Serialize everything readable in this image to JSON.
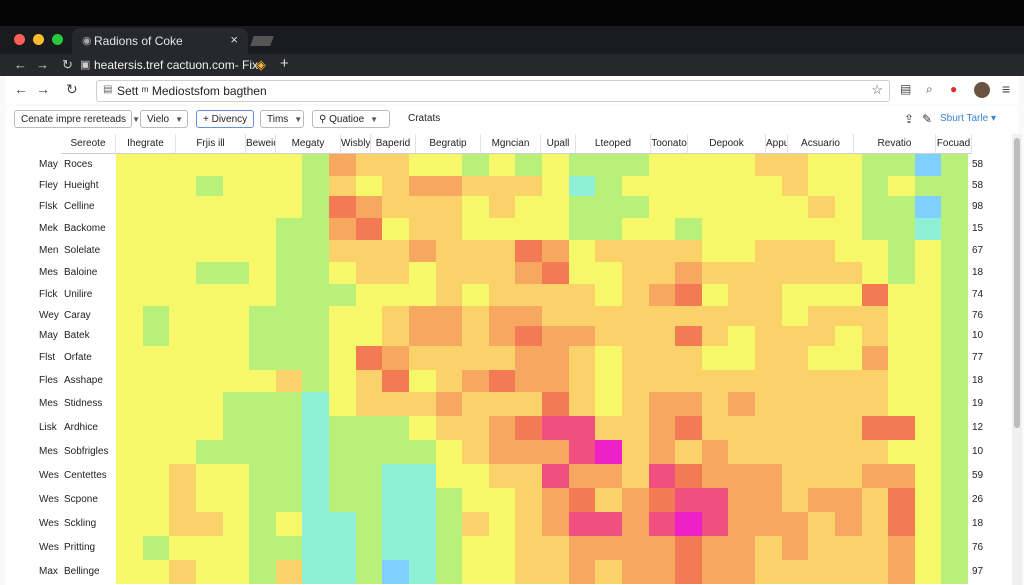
{
  "browser": {
    "tab_title": "Radions of Coke",
    "tab_close": "×",
    "address_url": "heatersis.tref cactuon.com- Fix",
    "new_tab": "+",
    "omnibox_text": "Sett ᵐ Mediostsfom bagthen"
  },
  "toolbar": {
    "dropdown1": "Cenate impre rereteads",
    "dropdown2": "Vielo",
    "button_active": "+ Divency",
    "dropdown3": "Tims",
    "dropdown4": "Quatioe",
    "label": "Cratats",
    "share": "Sburt Tarle"
  },
  "columns": [
    "Sereote",
    "Ihegrate",
    "Frjis ill",
    "Beweict",
    "Megaty",
    "Wisbly",
    "Baperid",
    "Begratip",
    "Mgncian",
    "Upall",
    "Lteoped",
    "Toonato",
    "Depook",
    "Appul",
    "Acsuario",
    "Revatio",
    "Focuad"
  ],
  "rows": [
    {
      "prefix": "May",
      "name": "Roces",
      "value": "58"
    },
    {
      "prefix": "Fley",
      "name": "Hueight",
      "value": "58"
    },
    {
      "prefix": "Flsk",
      "name": "Celline",
      "value": "98"
    },
    {
      "prefix": "Mek",
      "name": "Backome",
      "value": "15"
    },
    {
      "prefix": "Men",
      "name": "Solelate",
      "value": "67"
    },
    {
      "prefix": "Mes",
      "name": "Baloine",
      "value": "18"
    },
    {
      "prefix": "Flck",
      "name": "Unilire",
      "value": "74"
    },
    {
      "prefix": "Wey",
      "name": "Caray",
      "value": "76"
    },
    {
      "prefix": "May",
      "name": "Batek",
      "value": "10"
    },
    {
      "prefix": "Flst",
      "name": "Orfate",
      "value": "77"
    },
    {
      "prefix": "Fles",
      "name": "Asshape",
      "value": "18"
    },
    {
      "prefix": "Mes",
      "name": "Stidness",
      "value": "19"
    },
    {
      "prefix": "Lisk",
      "name": "Ardhice",
      "value": "12"
    },
    {
      "prefix": "Mes",
      "name": "Sobfrigles",
      "value": "10"
    },
    {
      "prefix": "Wes",
      "name": "Centettes",
      "value": "59"
    },
    {
      "prefix": "Wes",
      "name": "Scpone",
      "value": "26"
    },
    {
      "prefix": "Wes",
      "name": "Sckling",
      "value": "18"
    },
    {
      "prefix": "Wes",
      "name": "Pritting",
      "value": "76"
    },
    {
      "prefix": "Max",
      "name": "Bellinge",
      "value": "97"
    }
  ],
  "chart_data": {
    "type": "heatmap",
    "colorscale": [
      "#7fd0ff",
      "#8ff0d8",
      "#b9f07a",
      "#f6f86a",
      "#fbd26a",
      "#f7a860",
      "#f47a55",
      "#f04f80",
      "#f020c8"
    ],
    "matrix": [
      [
        3,
        3,
        3,
        3,
        3,
        3,
        3,
        2,
        5,
        4,
        4,
        3,
        3,
        2,
        3,
        2,
        3,
        2,
        2,
        2,
        3,
        3,
        3,
        3,
        4,
        4,
        3,
        3,
        2,
        2,
        0,
        2
      ],
      [
        3,
        3,
        3,
        2,
        3,
        3,
        3,
        2,
        4,
        3,
        4,
        5,
        5,
        4,
        4,
        4,
        3,
        1,
        2,
        3,
        3,
        3,
        3,
        3,
        3,
        4,
        3,
        3,
        2,
        3,
        2,
        2
      ],
      [
        3,
        3,
        3,
        3,
        3,
        3,
        3,
        2,
        6,
        5,
        4,
        4,
        4,
        3,
        4,
        3,
        3,
        2,
        2,
        2,
        3,
        3,
        3,
        3,
        3,
        3,
        4,
        3,
        2,
        2,
        0,
        2
      ],
      [
        3,
        3,
        3,
        3,
        3,
        3,
        2,
        2,
        5,
        6,
        3,
        4,
        4,
        3,
        3,
        3,
        3,
        2,
        2,
        3,
        3,
        2,
        3,
        3,
        3,
        3,
        3,
        3,
        2,
        2,
        1,
        2
      ],
      [
        3,
        3,
        3,
        3,
        3,
        3,
        2,
        2,
        4,
        4,
        4,
        5,
        4,
        4,
        4,
        6,
        5,
        3,
        4,
        4,
        4,
        4,
        3,
        3,
        4,
        4,
        4,
        3,
        3,
        2,
        3,
        2
      ],
      [
        3,
        3,
        3,
        2,
        2,
        3,
        2,
        2,
        3,
        4,
        4,
        3,
        4,
        4,
        4,
        5,
        6,
        3,
        3,
        4,
        4,
        5,
        4,
        4,
        4,
        4,
        4,
        4,
        3,
        2,
        3,
        2
      ],
      [
        3,
        3,
        3,
        3,
        3,
        3,
        2,
        2,
        2,
        3,
        3,
        3,
        4,
        3,
        4,
        4,
        4,
        4,
        3,
        4,
        5,
        6,
        3,
        4,
        4,
        3,
        3,
        3,
        6,
        3,
        3,
        2
      ],
      [
        3,
        2,
        3,
        3,
        3,
        2,
        2,
        2,
        3,
        3,
        4,
        5,
        5,
        4,
        5,
        5,
        4,
        4,
        4,
        4,
        4,
        4,
        4,
        4,
        4,
        3,
        4,
        4,
        4,
        3,
        3,
        2
      ],
      [
        3,
        2,
        3,
        3,
        3,
        2,
        2,
        2,
        3,
        3,
        4,
        5,
        5,
        4,
        5,
        6,
        5,
        5,
        4,
        4,
        4,
        6,
        4,
        3,
        4,
        4,
        4,
        3,
        4,
        3,
        3,
        2
      ],
      [
        3,
        3,
        3,
        3,
        3,
        2,
        2,
        2,
        3,
        6,
        5,
        4,
        4,
        4,
        4,
        5,
        5,
        4,
        3,
        4,
        4,
        4,
        3,
        3,
        4,
        4,
        3,
        3,
        5,
        3,
        3,
        2
      ],
      [
        3,
        3,
        3,
        3,
        3,
        3,
        4,
        2,
        3,
        4,
        6,
        3,
        4,
        5,
        6,
        5,
        5,
        4,
        3,
        4,
        4,
        4,
        4,
        4,
        4,
        4,
        4,
        4,
        4,
        3,
        3,
        2
      ],
      [
        3,
        3,
        3,
        3,
        2,
        2,
        2,
        1,
        3,
        4,
        4,
        4,
        5,
        4,
        4,
        4,
        6,
        4,
        3,
        4,
        5,
        5,
        4,
        5,
        4,
        4,
        4,
        4,
        4,
        3,
        3,
        2
      ],
      [
        3,
        3,
        3,
        3,
        2,
        2,
        2,
        1,
        2,
        2,
        2,
        3,
        4,
        4,
        5,
        6,
        7,
        7,
        4,
        4,
        5,
        6,
        4,
        4,
        4,
        4,
        4,
        4,
        6,
        6,
        3,
        2
      ],
      [
        3,
        3,
        3,
        2,
        2,
        2,
        2,
        1,
        2,
        2,
        2,
        2,
        3,
        4,
        5,
        5,
        5,
        7,
        8,
        4,
        5,
        4,
        5,
        4,
        4,
        4,
        4,
        4,
        4,
        3,
        3,
        2
      ],
      [
        3,
        3,
        4,
        3,
        3,
        2,
        2,
        1,
        2,
        2,
        1,
        1,
        3,
        3,
        4,
        4,
        7,
        5,
        5,
        4,
        7,
        6,
        5,
        5,
        5,
        4,
        4,
        4,
        5,
        5,
        3,
        2
      ],
      [
        3,
        3,
        4,
        3,
        3,
        2,
        2,
        1,
        2,
        2,
        1,
        1,
        2,
        3,
        3,
        4,
        5,
        6,
        4,
        5,
        6,
        7,
        7,
        5,
        5,
        4,
        5,
        5,
        4,
        6,
        3,
        2
      ],
      [
        3,
        3,
        4,
        4,
        3,
        2,
        3,
        1,
        1,
        2,
        1,
        1,
        2,
        4,
        3,
        4,
        5,
        7,
        7,
        5,
        7,
        8,
        7,
        5,
        5,
        5,
        4,
        5,
        4,
        6,
        3,
        2
      ],
      [
        3,
        2,
        3,
        3,
        3,
        2,
        2,
        1,
        1,
        2,
        1,
        1,
        2,
        3,
        3,
        4,
        4,
        5,
        5,
        5,
        5,
        6,
        5,
        5,
        4,
        5,
        4,
        4,
        4,
        5,
        3,
        2
      ],
      [
        3,
        3,
        4,
        3,
        3,
        2,
        4,
        1,
        1,
        2,
        0,
        1,
        2,
        3,
        3,
        4,
        4,
        5,
        4,
        5,
        5,
        6,
        5,
        5,
        4,
        4,
        4,
        4,
        4,
        5,
        3,
        2
      ]
    ]
  }
}
